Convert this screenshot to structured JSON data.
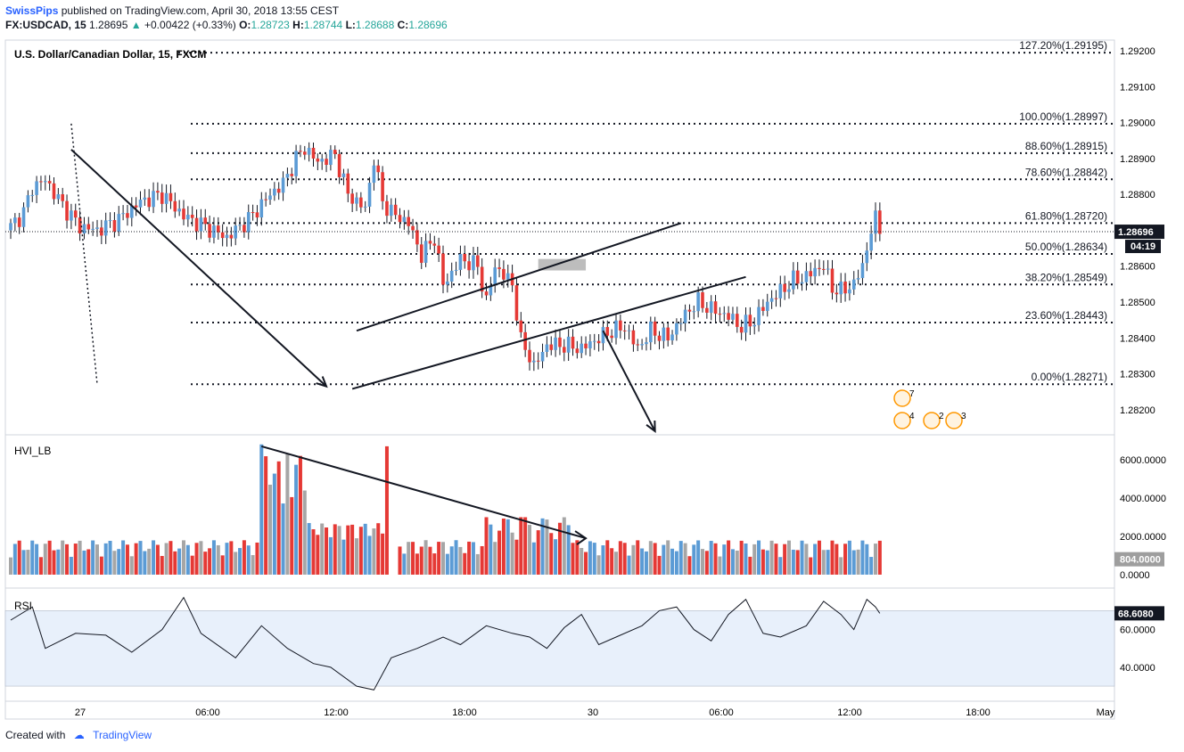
{
  "header": {
    "author": "SwissPips",
    "published": "published on TradingView.com, April 30, 2018 13:55 CEST",
    "symbol": "FX:USDCAD, 15",
    "last": "1.28695",
    "change": "+0.00422 (+0.33%)",
    "o_label": "O:",
    "o": "1.28723",
    "h_label": "H:",
    "h": "1.28744",
    "l_label": "L:",
    "l": "1.28688",
    "c_label": "C:",
    "c": "1.28696"
  },
  "footer": {
    "created": "Created with",
    "brand": "TradingView"
  },
  "colors": {
    "up": "#5b9bd5",
    "down": "#e53935",
    "neutral": "#a6a6a6",
    "rsi_band": "#e8f0fb"
  },
  "chart_data": [
    {
      "type": "candlestick",
      "title": "U.S. Dollar/Canadian Dollar, 15, FXCM",
      "ylim": [
        1.2813,
        1.2923
      ],
      "yticks": [
        "1.29200",
        "1.29100",
        "1.29000",
        "1.28900",
        "1.28800",
        "1.28700",
        "1.28600",
        "1.28500",
        "1.28400",
        "1.28300",
        "1.28200"
      ],
      "ytick_values": [
        1.292,
        1.291,
        1.29,
        1.289,
        1.288,
        1.287,
        1.286,
        1.285,
        1.284,
        1.283,
        1.282
      ],
      "xticks": [
        "27",
        "06:00",
        "12:00",
        "18:00",
        "30",
        "06:00",
        "12:00",
        "18:00",
        "May"
      ],
      "last_price": "1.28696",
      "countdown": "04:19",
      "fib_levels": [
        {
          "label": "127.20%(1.29195)",
          "value": 1.29195
        },
        {
          "label": "100.00%(1.28997)",
          "value": 1.28997
        },
        {
          "label": "88.60%(1.28915)",
          "value": 1.28915
        },
        {
          "label": "78.60%(1.28842)",
          "value": 1.28842
        },
        {
          "label": "61.80%(1.28720)",
          "value": 1.2872
        },
        {
          "label": "50.00%(1.28634)",
          "value": 1.28634
        },
        {
          "label": "38.20%(1.28549)",
          "value": 1.28549
        },
        {
          "label": "23.60%(1.28443)",
          "value": 1.28443
        },
        {
          "label": "0.00%(1.28271)",
          "value": 1.28271
        }
      ],
      "close_anchors": [
        [
          0,
          1.2871
        ],
        [
          3,
          1.2875
        ],
        [
          5,
          1.2882
        ],
        [
          8,
          1.2884
        ],
        [
          12,
          1.2877
        ],
        [
          16,
          1.2871
        ],
        [
          20,
          1.287
        ],
        [
          25,
          1.2873
        ],
        [
          30,
          1.2878
        ],
        [
          35,
          1.288
        ],
        [
          40,
          1.2874
        ],
        [
          45,
          1.2871
        ],
        [
          50,
          1.2868
        ],
        [
          55,
          1.2873
        ],
        [
          60,
          1.288
        ],
        [
          63,
          1.2883
        ],
        [
          66,
          1.289
        ],
        [
          68,
          1.2893
        ],
        [
          71,
          1.2889
        ],
        [
          75,
          1.2891
        ],
        [
          78,
          1.288
        ],
        [
          82,
          1.2876
        ],
        [
          84,
          1.289
        ],
        [
          86,
          1.2878
        ],
        [
          88,
          1.2875
        ],
        [
          92,
          1.2872
        ],
        [
          95,
          1.2863
        ],
        [
          98,
          1.2868
        ],
        [
          100,
          1.2855
        ],
        [
          102,
          1.2858
        ],
        [
          104,
          1.2862
        ],
        [
          108,
          1.286
        ],
        [
          110,
          1.285
        ],
        [
          112,
          1.286
        ],
        [
          116,
          1.2855
        ],
        [
          118,
          1.2839
        ],
        [
          120,
          1.2835
        ],
        [
          121,
          1.2832
        ],
        [
          124,
          1.2838
        ],
        [
          128,
          1.2838
        ],
        [
          132,
          1.2837
        ],
        [
          136,
          1.284
        ],
        [
          139,
          1.2842
        ],
        [
          142,
          1.2843
        ],
        [
          145,
          1.2837
        ],
        [
          148,
          1.2842
        ],
        [
          152,
          1.284
        ],
        [
          155,
          1.2845
        ],
        [
          157,
          1.2848
        ],
        [
          159,
          1.285
        ],
        [
          162,
          1.2848
        ],
        [
          166,
          1.2846
        ],
        [
          169,
          1.2843
        ],
        [
          172,
          1.2845
        ],
        [
          175,
          1.285
        ],
        [
          178,
          1.2853
        ],
        [
          181,
          1.2856
        ],
        [
          184,
          1.2857
        ],
        [
          186,
          1.2859
        ],
        [
          188,
          1.286
        ],
        [
          190,
          1.2854
        ],
        [
          192,
          1.2853
        ],
        [
          195,
          1.2855
        ],
        [
          197,
          1.286
        ],
        [
          198,
          1.2865
        ],
        [
          199,
          1.287
        ],
        [
          200,
          1.2873
        ],
        [
          201,
          1.2869
        ]
      ],
      "drawings": [
        {
          "name": "downtrend-arrow",
          "from": [
            14,
            1.28925
          ],
          "to": [
            73,
            1.28265
          ]
        },
        {
          "name": "fib-anchor-line",
          "from": [
            14,
            1.28997
          ],
          "to": [
            20,
            1.28271
          ]
        },
        {
          "name": "channel-upper-line",
          "from": [
            80,
            1.2842
          ],
          "to": [
            155,
            1.2872
          ]
        },
        {
          "name": "channel-lower-line",
          "from": [
            79,
            1.28258
          ],
          "to": [
            170,
            1.2857
          ]
        },
        {
          "name": "projection-arrow",
          "from": [
            137,
            1.2842
          ],
          "to": [
            149,
            1.2814
          ]
        }
      ],
      "resistance_box": {
        "x0": 122,
        "x1": 133,
        "y0": 1.2862,
        "y1": 1.28588
      },
      "event_badges": [
        "7",
        "4",
        "2",
        "3"
      ]
    },
    {
      "type": "bar",
      "title": "HVI_LB",
      "ylim": [
        -700,
        7300
      ],
      "yticks": [
        "6000.0000",
        "4000.0000",
        "2000.0000",
        "0.0000"
      ],
      "ytick_values": [
        6000,
        4000,
        2000,
        0
      ],
      "last_value": "804.0000",
      "series_pattern": "volume bars, peak 6800 near mid-session, gap around bar 87",
      "trend_arrow": {
        "from": [
          58,
          6700
        ],
        "to": [
          133,
          1900
        ]
      }
    },
    {
      "type": "line",
      "title": "RSI",
      "ylim": [
        22,
        82
      ],
      "yticks": [
        "60.0000",
        "40.0000"
      ],
      "ytick_values": [
        60,
        40
      ],
      "band": [
        30,
        70
      ],
      "last_value": "68.6080",
      "anchors": [
        [
          0,
          65
        ],
        [
          5,
          72
        ],
        [
          8,
          50
        ],
        [
          15,
          58
        ],
        [
          22,
          57
        ],
        [
          28,
          48
        ],
        [
          35,
          60
        ],
        [
          40,
          77
        ],
        [
          44,
          58
        ],
        [
          52,
          45
        ],
        [
          58,
          62
        ],
        [
          64,
          50
        ],
        [
          70,
          42
        ],
        [
          74,
          40
        ],
        [
          80,
          30
        ],
        [
          84,
          28
        ],
        [
          88,
          45
        ],
        [
          94,
          50
        ],
        [
          100,
          56
        ],
        [
          104,
          52
        ],
        [
          110,
          62
        ],
        [
          116,
          58
        ],
        [
          120,
          56
        ],
        [
          124,
          50
        ],
        [
          128,
          61
        ],
        [
          132,
          68
        ],
        [
          136,
          52
        ],
        [
          140,
          56
        ],
        [
          146,
          62
        ],
        [
          150,
          70
        ],
        [
          154,
          72
        ],
        [
          158,
          60
        ],
        [
          162,
          54
        ],
        [
          166,
          68
        ],
        [
          170,
          76
        ],
        [
          174,
          58
        ],
        [
          178,
          56
        ],
        [
          184,
          62
        ],
        [
          188,
          75
        ],
        [
          192,
          68
        ],
        [
          195,
          60
        ],
        [
          198,
          76
        ],
        [
          200,
          72
        ],
        [
          201,
          68.6
        ]
      ]
    }
  ]
}
